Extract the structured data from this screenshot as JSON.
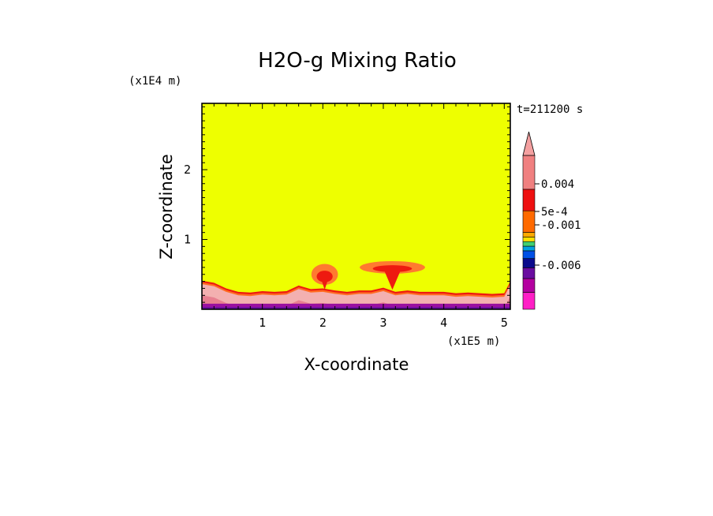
{
  "chart_data": {
    "type": "heatmap",
    "title": "H2O-g Mixing Ratio",
    "xlabel": "X-coordinate",
    "ylabel": "Z-coordinate",
    "x_unit": "(x1E5 m)",
    "y_unit": "(x1E4 m)",
    "time_label": "t=211200 s",
    "xlim": [
      0,
      5.1
    ],
    "ylim": [
      0,
      2.95
    ],
    "x_ticks": [
      1,
      2,
      3,
      4,
      5
    ],
    "y_ticks": [
      1,
      2
    ],
    "background_level_color": "#eeff00",
    "surface_layer": {
      "x": [
        0.0,
        0.2,
        0.4,
        0.6,
        0.8,
        1.0,
        1.2,
        1.4,
        1.6,
        1.8,
        2.0,
        2.2,
        2.4,
        2.6,
        2.8,
        3.0,
        3.2,
        3.4,
        3.6,
        3.8,
        4.0,
        4.2,
        4.4,
        4.6,
        4.8,
        5.0,
        5.1
      ],
      "top": [
        0.41,
        0.38,
        0.3,
        0.25,
        0.24,
        0.26,
        0.25,
        0.26,
        0.34,
        0.29,
        0.3,
        0.27,
        0.25,
        0.27,
        0.27,
        0.31,
        0.25,
        0.27,
        0.25,
        0.25,
        0.25,
        0.23,
        0.24,
        0.23,
        0.22,
        0.23,
        0.4
      ]
    },
    "plumes": [
      {
        "x_center": 2.03,
        "z_center": 0.5,
        "x_halfwidth": 0.22,
        "z_halfheight": 0.15
      },
      {
        "x_center": 3.15,
        "z_center": 0.6,
        "x_halfwidth": 0.54,
        "z_halfheight": 0.09
      }
    ],
    "colorbar": {
      "colors": [
        "#ff1fc6",
        "#b400a0",
        "#6a0ca0",
        "#0a0a8c",
        "#0050e6",
        "#00a0e0",
        "#40d070",
        "#ffe000",
        "#ffaa00",
        "#ff6a00",
        "#ee1010",
        "#f08080"
      ],
      "labels": [
        "0.004",
        "5e-4",
        "-0.001",
        "-0.006"
      ],
      "extend": "max",
      "extend_color": "#f4a0a0"
    }
  }
}
